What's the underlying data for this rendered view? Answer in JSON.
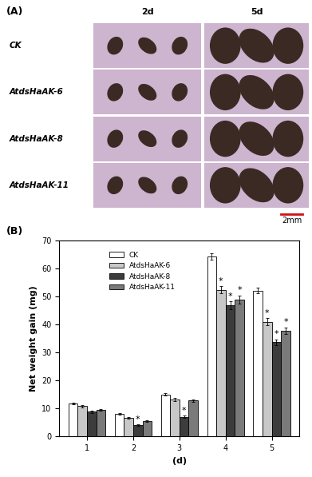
{
  "panel_a": {
    "label": "(A)",
    "columns": [
      "2d",
      "5d"
    ],
    "rows": [
      "CK",
      "AtdsHaAK-6",
      "AtdsHaAK-8",
      "AtdsHaAK-11"
    ],
    "scale_bar": "2mm"
  },
  "chart_data": {
    "type": "bar",
    "panel_label": "(B)",
    "x_label": "(d)",
    "y_label": "Net weight gain (mg)",
    "categories": [
      "1",
      "2",
      "3",
      "4",
      "5"
    ],
    "ylim": [
      0,
      70
    ],
    "yticks": [
      0,
      10,
      20,
      30,
      40,
      50,
      60,
      70
    ],
    "legend": "upper left",
    "grid": false,
    "series": [
      {
        "name": "CK",
        "color": "#ffffff",
        "values": [
          11.8,
          8.0,
          15.0,
          64.5,
          52.2
        ],
        "errors": [
          0.4,
          0.3,
          0.4,
          1.2,
          1.0
        ],
        "significance": [
          null,
          null,
          null,
          null,
          null
        ]
      },
      {
        "name": "AtdsHaAK-6",
        "color": "#c8c8c8",
        "values": [
          10.8,
          6.7,
          13.2,
          52.5,
          41.0
        ],
        "errors": [
          0.4,
          0.3,
          0.5,
          1.3,
          1.3
        ],
        "significance": [
          null,
          null,
          null,
          "*",
          "*"
        ]
      },
      {
        "name": "AtdsHaAK-8",
        "color": "#3c3c3c",
        "values": [
          8.8,
          4.0,
          7.0,
          47.0,
          33.8
        ],
        "errors": [
          0.3,
          0.3,
          0.4,
          1.4,
          1.0
        ],
        "significance": [
          null,
          "*",
          "*",
          "*",
          "*"
        ]
      },
      {
        "name": "AtdsHaAK-11",
        "color": "#7a7a7a",
        "values": [
          9.6,
          5.6,
          12.8,
          49.0,
          37.8
        ],
        "errors": [
          0.3,
          0.3,
          0.4,
          1.5,
          1.2
        ],
        "significance": [
          null,
          null,
          null,
          "*",
          "*"
        ]
      }
    ]
  }
}
